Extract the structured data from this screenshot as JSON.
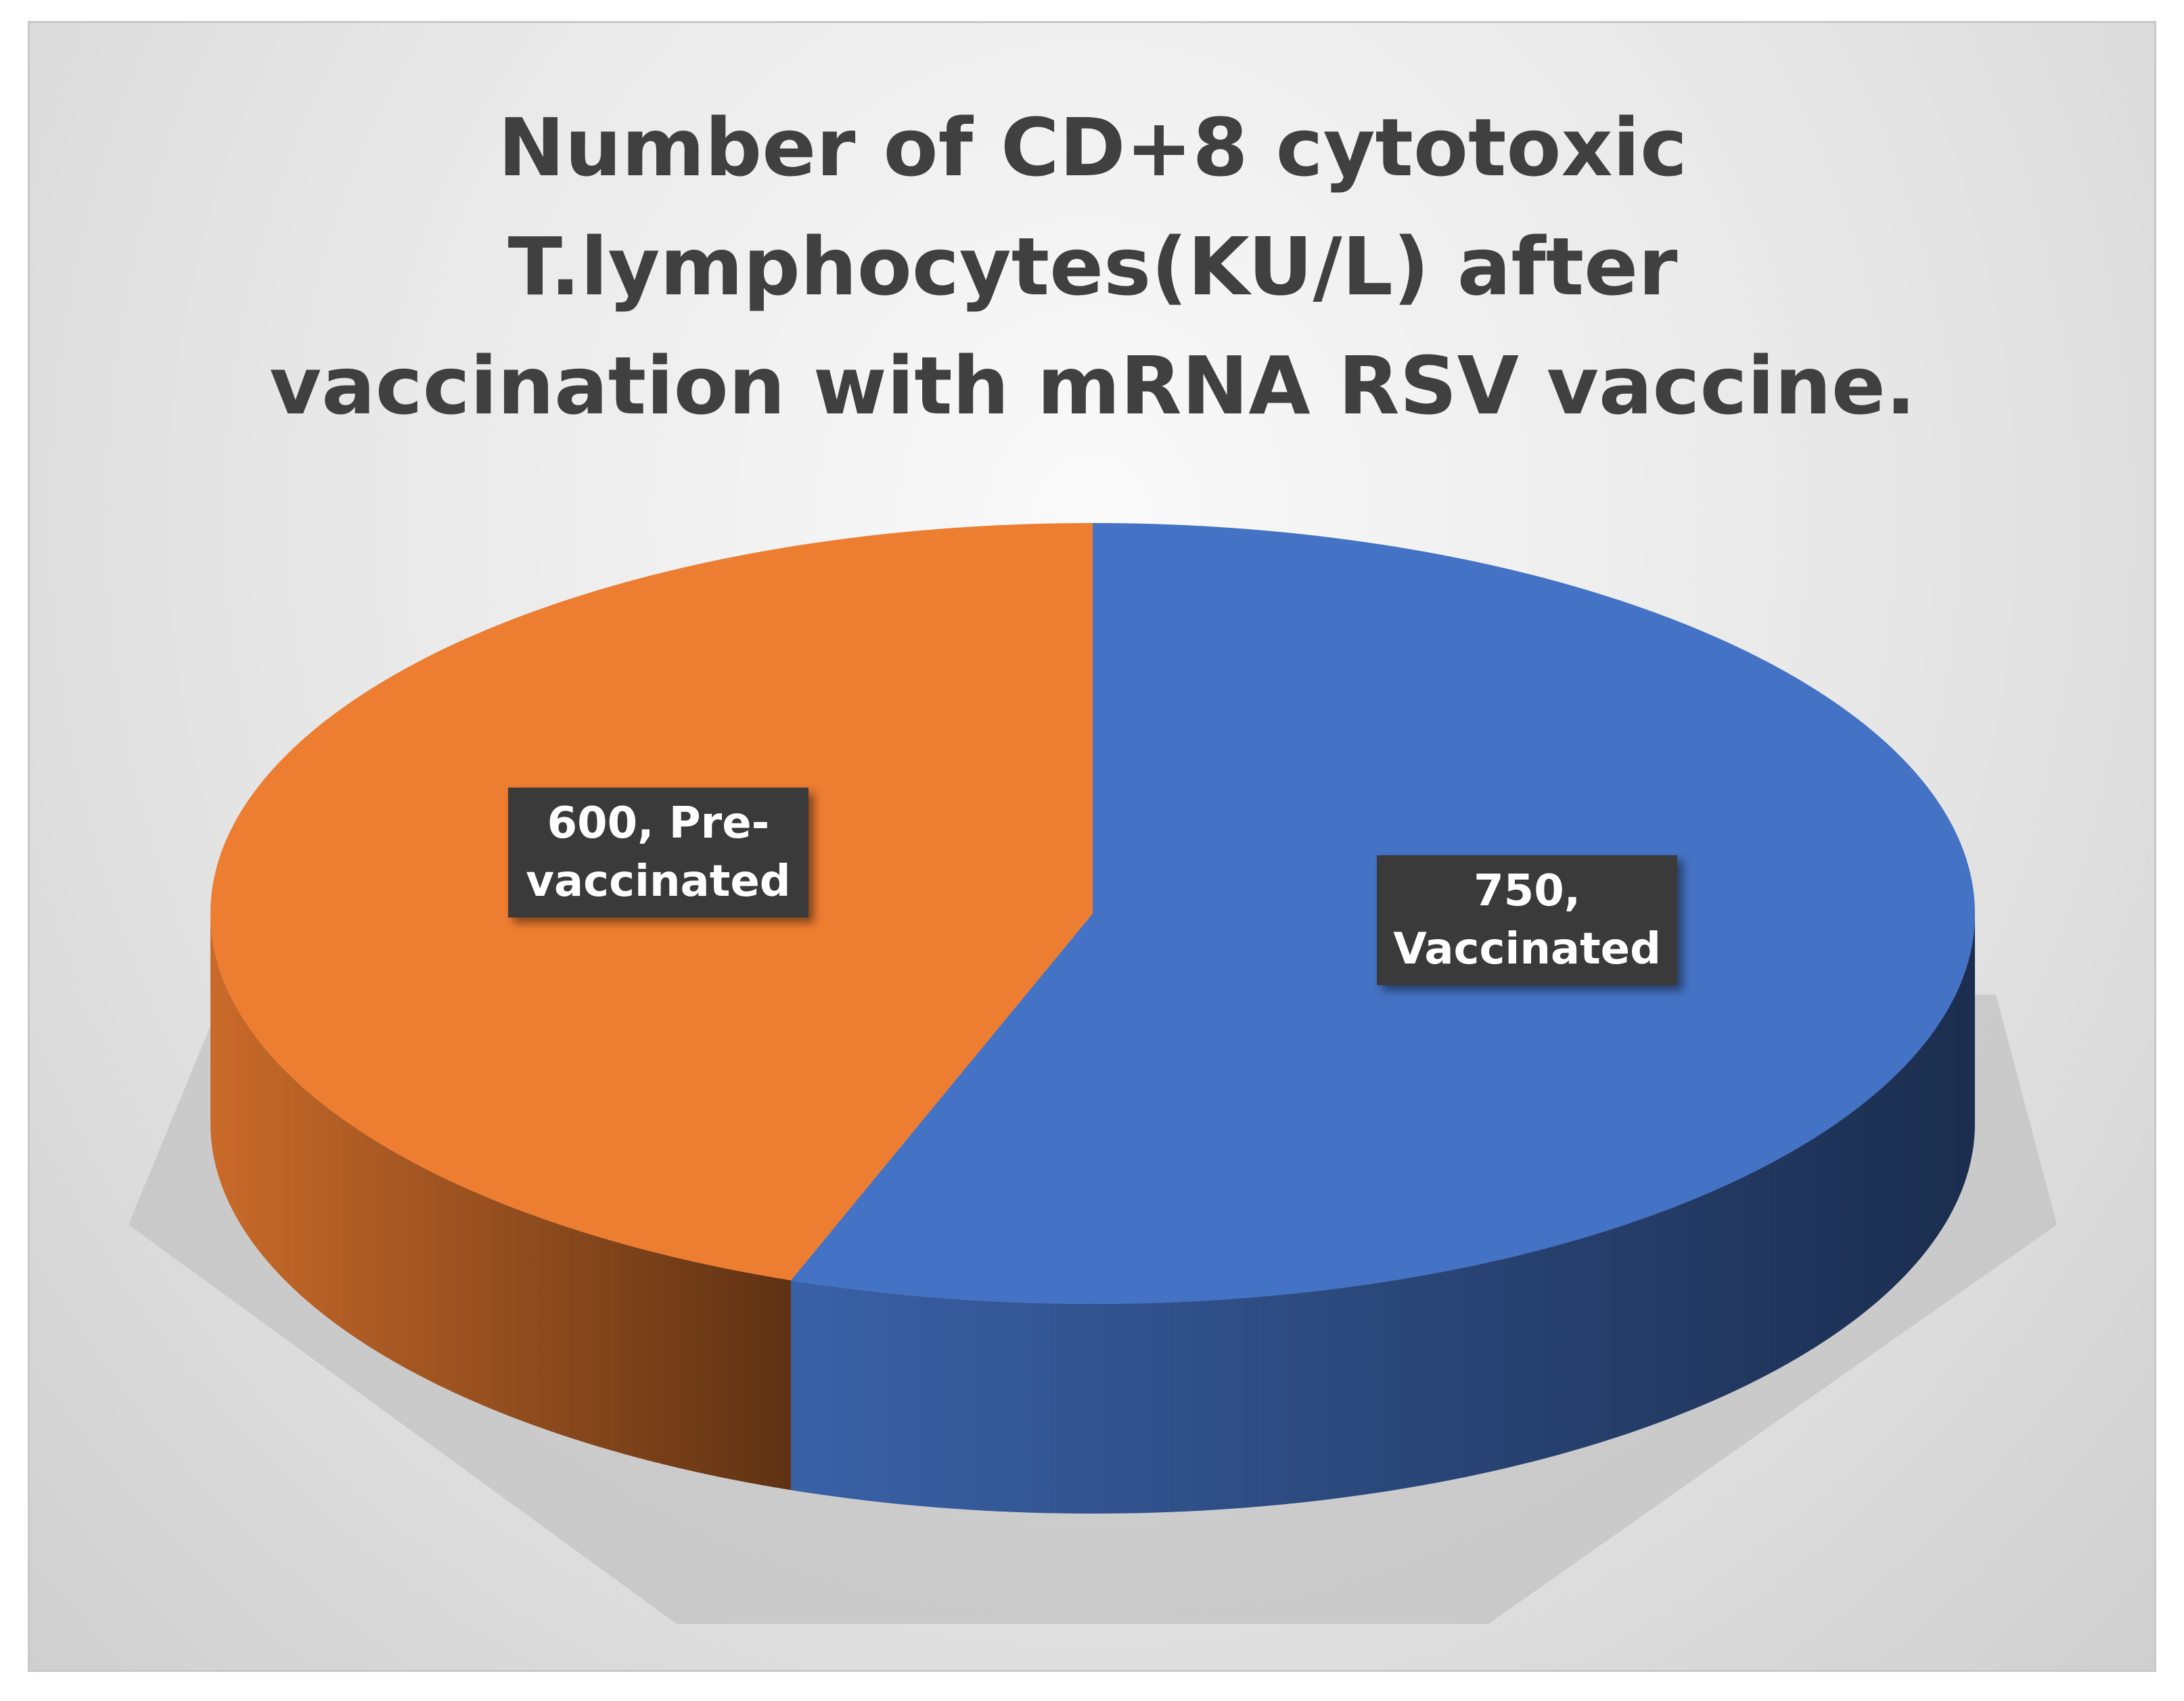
{
  "chart_data": {
    "type": "pie",
    "title": "Number of CD+8 cytotoxic T.lymphocytes(KU/L) after vaccination with  mRNA RSV vaccine.",
    "values": [
      600,
      750
    ],
    "value_labels": [
      "600, Pre-vaccinated",
      "750, Vaccinated"
    ],
    "colors": [
      "#ED7D31",
      "#4472C4"
    ]
  }
}
